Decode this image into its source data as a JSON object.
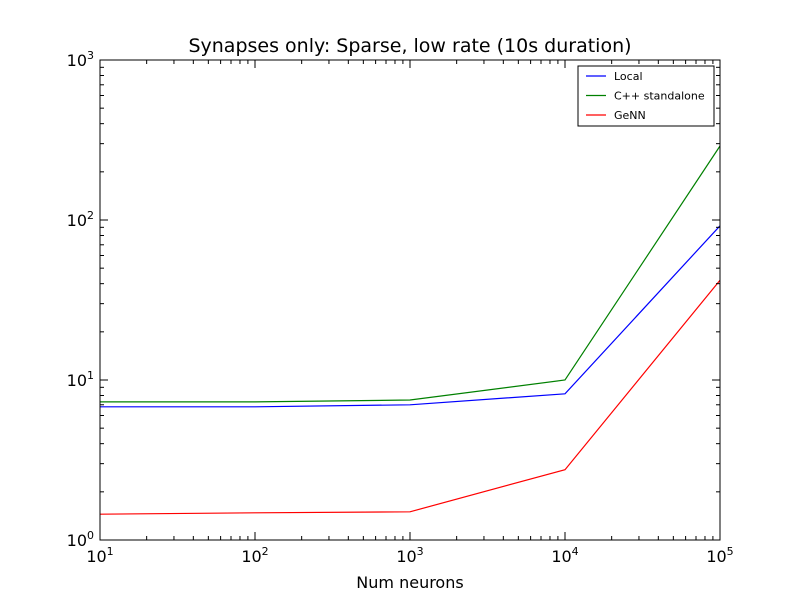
{
  "chart_data": {
    "type": "line",
    "title": "Synapses only: Sparse, low rate (10s duration)",
    "xlabel": "Num neurons",
    "ylabel": "",
    "xscale": "log",
    "yscale": "log",
    "xlim": [
      10,
      100000
    ],
    "ylim": [
      1,
      1000
    ],
    "x_ticks": [
      {
        "base": "10",
        "exp": "1",
        "value": 10
      },
      {
        "base": "10",
        "exp": "2",
        "value": 100
      },
      {
        "base": "10",
        "exp": "3",
        "value": 1000
      },
      {
        "base": "10",
        "exp": "4",
        "value": 10000
      },
      {
        "base": "10",
        "exp": "5",
        "value": 100000
      }
    ],
    "y_ticks": [
      {
        "base": "10",
        "exp": "0",
        "value": 1
      },
      {
        "base": "10",
        "exp": "1",
        "value": 10
      },
      {
        "base": "10",
        "exp": "2",
        "value": 100
      },
      {
        "base": "10",
        "exp": "3",
        "value": 1000
      }
    ],
    "grid": false,
    "legend_position": "top-right",
    "series": [
      {
        "name": "Local",
        "color": "#0000ff",
        "x": [
          10,
          100,
          1000,
          10000,
          100000
        ],
        "y": [
          6.8,
          6.8,
          7.0,
          8.2,
          92
        ]
      },
      {
        "name": "C++ standalone",
        "color": "#008000",
        "x": [
          10,
          100,
          1000,
          10000,
          100000
        ],
        "y": [
          7.3,
          7.3,
          7.5,
          10.0,
          290
        ]
      },
      {
        "name": "GeNN",
        "color": "#ff0000",
        "x": [
          10,
          100,
          1000,
          10000,
          100000
        ],
        "y": [
          1.45,
          1.48,
          1.5,
          2.75,
          42
        ]
      }
    ]
  }
}
